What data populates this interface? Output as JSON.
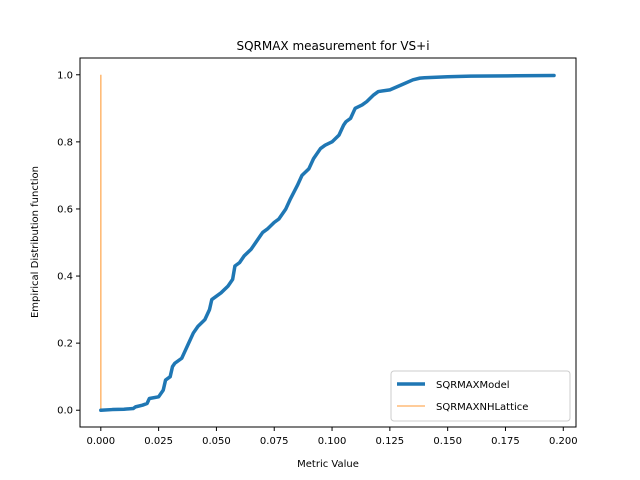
{
  "chart_data": {
    "type": "line",
    "title": "SQRMAX measurement for VS+i",
    "xlabel": "Metric Value",
    "ylabel": "Empirical Distribution function",
    "xlim": [
      -0.009,
      0.2055
    ],
    "ylim": [
      -0.05,
      1.05
    ],
    "xticks": [
      0.0,
      0.025,
      0.05,
      0.075,
      0.1,
      0.125,
      0.15,
      0.175,
      0.2
    ],
    "xtick_labels": [
      "0.000",
      "0.025",
      "0.050",
      "0.075",
      "0.100",
      "0.125",
      "0.150",
      "0.175",
      "0.200"
    ],
    "yticks": [
      0.0,
      0.2,
      0.4,
      0.6,
      0.8,
      1.0
    ],
    "ytick_labels": [
      "0.0",
      "0.2",
      "0.4",
      "0.6",
      "0.8",
      "1.0"
    ],
    "grid": false,
    "legend_position": "lower right",
    "series": [
      {
        "name": "SQRMAXModel",
        "color": "#1f77b4",
        "style": "thick",
        "x": [
          0.0,
          0.005,
          0.01,
          0.014,
          0.015,
          0.018,
          0.02,
          0.021,
          0.025,
          0.027,
          0.028,
          0.03,
          0.031,
          0.032,
          0.035,
          0.036,
          0.038,
          0.04,
          0.042,
          0.045,
          0.047,
          0.048,
          0.05,
          0.052,
          0.055,
          0.057,
          0.058,
          0.06,
          0.062,
          0.065,
          0.067,
          0.069,
          0.07,
          0.072,
          0.075,
          0.077,
          0.08,
          0.082,
          0.085,
          0.087,
          0.09,
          0.092,
          0.095,
          0.097,
          0.1,
          0.103,
          0.105,
          0.106,
          0.108,
          0.11,
          0.113,
          0.115,
          0.118,
          0.12,
          0.125,
          0.13,
          0.135,
          0.138,
          0.14,
          0.15,
          0.16,
          0.18,
          0.196
        ],
        "y": [
          0.0,
          0.002,
          0.003,
          0.005,
          0.01,
          0.015,
          0.02,
          0.035,
          0.04,
          0.06,
          0.09,
          0.1,
          0.13,
          0.14,
          0.155,
          0.17,
          0.2,
          0.23,
          0.25,
          0.27,
          0.3,
          0.33,
          0.34,
          0.35,
          0.37,
          0.39,
          0.43,
          0.44,
          0.46,
          0.48,
          0.5,
          0.52,
          0.53,
          0.54,
          0.56,
          0.57,
          0.6,
          0.63,
          0.67,
          0.7,
          0.72,
          0.75,
          0.78,
          0.79,
          0.8,
          0.82,
          0.85,
          0.86,
          0.87,
          0.9,
          0.91,
          0.92,
          0.94,
          0.95,
          0.955,
          0.97,
          0.985,
          0.99,
          0.991,
          0.994,
          0.996,
          0.997,
          0.998
        ]
      },
      {
        "name": "SQRMAXNHLattice",
        "color": "#ffbb78",
        "style": "thin",
        "x": [
          0.0,
          0.0
        ],
        "y": [
          0.0,
          1.0
        ]
      }
    ]
  }
}
